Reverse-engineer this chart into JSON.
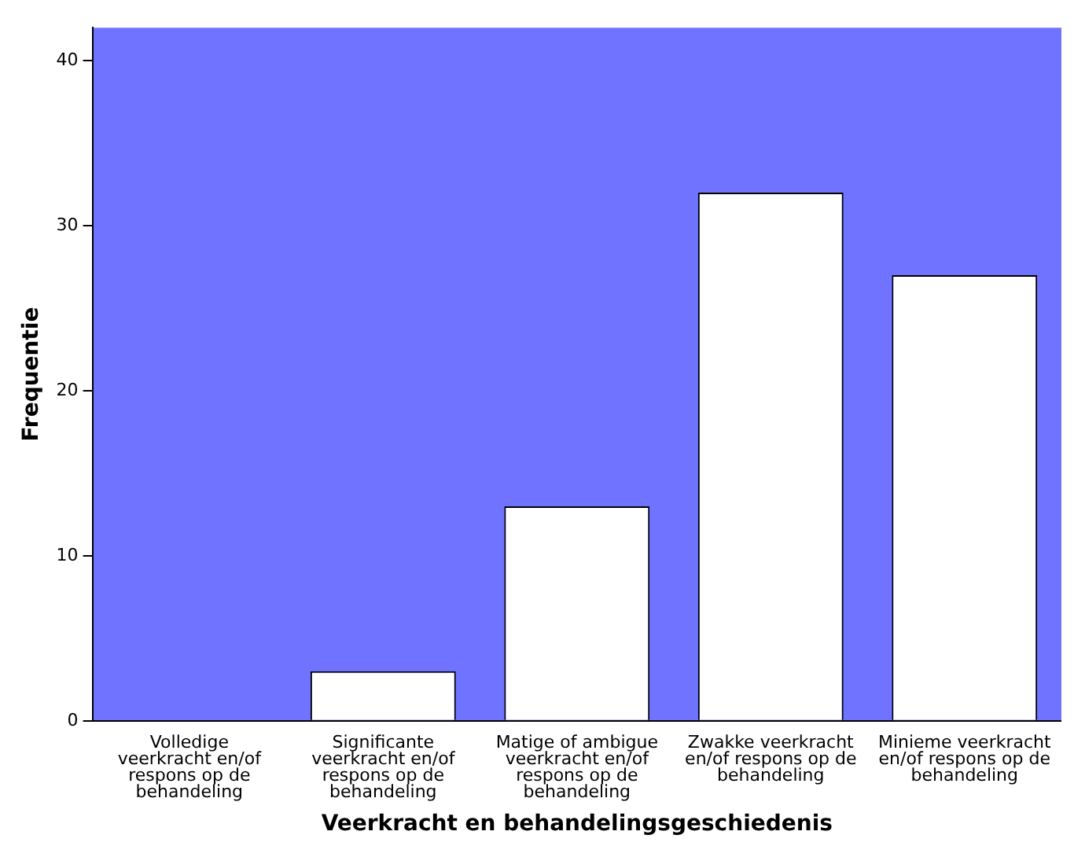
{
  "chart_data": {
    "type": "bar",
    "xlabel": "Veerkracht en behandelingsgeschiedenis",
    "ylabel": "Frequentie",
    "categories": [
      "Volledige veerkracht en/of respons op de behandeling",
      "Significante veerkracht en/of respons op de behandeling",
      "Matige of ambigue veerkracht en/of respons op de behandeling",
      "Zwakke veerkracht en/of respons op de behandeling",
      "Minieme veerkracht en/of respons op de behandeling"
    ],
    "values": [
      0,
      3,
      13,
      32,
      27
    ],
    "color": "#ffffff",
    "ylim": [
      0,
      42
    ],
    "yticks": [
      0,
      10,
      20,
      30,
      40
    ],
    "grid": false,
    "legend": false
  }
}
